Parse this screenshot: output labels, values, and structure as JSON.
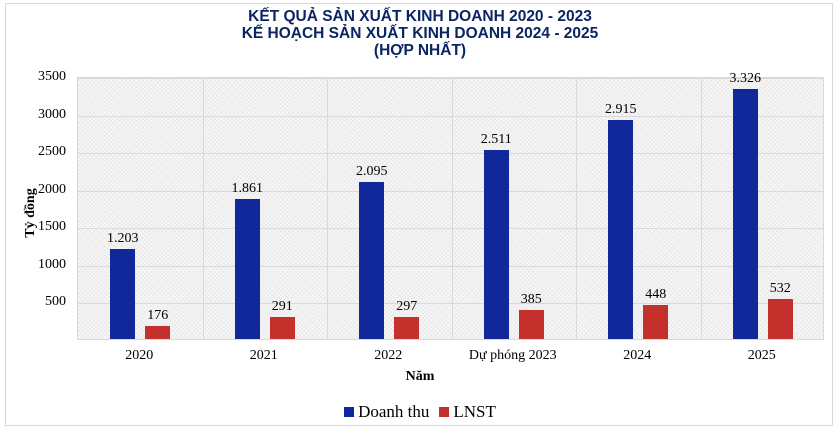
{
  "title": {
    "line1": "KẾT QUẢ SẢN XUẤT KINH DOANH 2020 - 2023",
    "line2": "KẾ HOẠCH SẢN XUẤT KINH DOANH 2024 - 2025",
    "line3": "(HỢP NHẤT)"
  },
  "axes": {
    "ylabel": "Tỷ đồng",
    "xlabel": "Năm",
    "yticks": [
      "3500",
      "3000",
      "2500",
      "2000",
      "1500",
      "1000",
      "500"
    ]
  },
  "legend": {
    "items": [
      {
        "label": "Doanh thu",
        "color": "#10289a"
      },
      {
        "label": "LNST",
        "color": "#c4302b"
      }
    ]
  },
  "colors": {
    "title": "#0b2463",
    "doanh_thu": "#10289a",
    "lnst": "#c4302b",
    "grid": "#d9d9d9"
  },
  "chart_data": {
    "type": "bar",
    "title": "KẾT QUẢ SẢN XUẤT KINH DOANH 2020 - 2023 / KẾ HOẠCH SẢN XUẤT KINH DOANH 2024 - 2025 (HỢP NHẤT)",
    "xlabel": "Năm",
    "ylabel": "Tỷ đồng",
    "ylim": [
      0,
      3500
    ],
    "yticks": [
      500,
      1000,
      1500,
      2000,
      2500,
      3000,
      3500
    ],
    "grid": true,
    "legend_position": "bottom",
    "categories": [
      "2020",
      "2021",
      "2022",
      "Dự phóng 2023",
      "2024",
      "2025"
    ],
    "series": [
      {
        "name": "Doanh thu",
        "color": "#10289a",
        "values": [
          1203,
          1861,
          2095,
          2511,
          2915,
          3326
        ],
        "labels": [
          "1.203",
          "1.861",
          "2.095",
          "2.511",
          "2.915",
          "3.326"
        ]
      },
      {
        "name": "LNST",
        "color": "#c4302b",
        "values": [
          176,
          291,
          297,
          385,
          448,
          532
        ],
        "labels": [
          "176",
          "291",
          "297",
          "385",
          "448",
          "532"
        ]
      }
    ]
  }
}
